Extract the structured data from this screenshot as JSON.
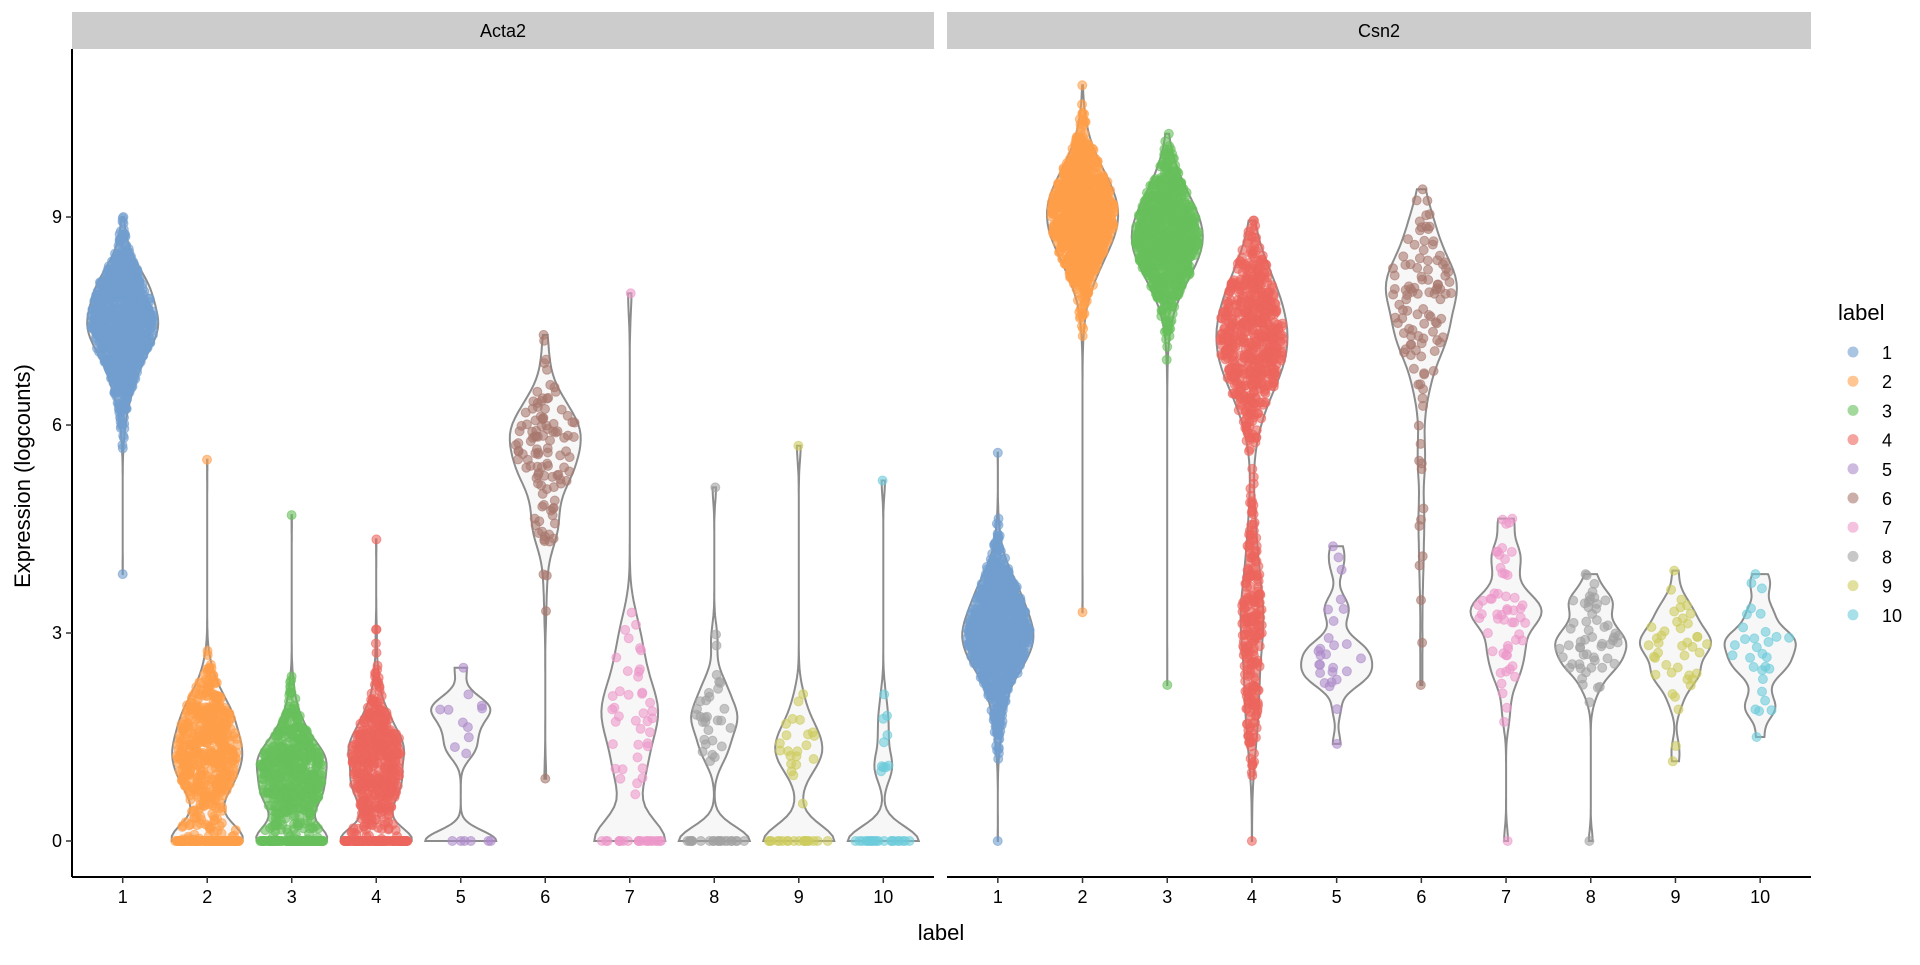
{
  "chart_data": {
    "type": "violin",
    "xlabel": "label",
    "ylabel": "Expression (logcounts)",
    "ylim": [
      -0.52,
      11.4
    ],
    "yticks": [
      0,
      3,
      6,
      9
    ],
    "categories": [
      "1",
      "2",
      "3",
      "4",
      "5",
      "6",
      "7",
      "8",
      "9",
      "10"
    ],
    "legend": {
      "title": "label",
      "position": "right",
      "entries": [
        "1",
        "2",
        "3",
        "4",
        "5",
        "6",
        "7",
        "8",
        "9",
        "10"
      ]
    },
    "colors": [
      "#729ECE",
      "#FF9E4A",
      "#67BF5C",
      "#ED665D",
      "#AD8BC9",
      "#A8786E",
      "#ED97CA",
      "#A2A2A2",
      "#CDCC5D",
      "#6DCCDA"
    ],
    "grid": false,
    "panels": [
      {
        "title": "Acta2",
        "violins": [
          {
            "label": "1",
            "n": 900,
            "min": 3.85,
            "max": 9.0,
            "modes": [
              {
                "c": 7.5,
                "sd": 0.6,
                "w": 1
              }
            ],
            "zeros": 0
          },
          {
            "label": "2",
            "n": 500,
            "min": 0,
            "max": 5.5,
            "modes": [
              {
                "c": 1.3,
                "sd": 0.6,
                "w": 1
              }
            ],
            "zeros": 150
          },
          {
            "label": "3",
            "n": 500,
            "min": 0,
            "max": 4.7,
            "modes": [
              {
                "c": 0.95,
                "sd": 0.5,
                "w": 1
              }
            ],
            "zeros": 150
          },
          {
            "label": "4",
            "n": 450,
            "min": 0,
            "max": 4.35,
            "modes": [
              {
                "c": 1.1,
                "sd": 0.6,
                "w": 1
              }
            ],
            "zeros": 150
          },
          {
            "label": "5",
            "n": 10,
            "min": 0,
            "max": 2.5,
            "modes": [
              {
                "c": 1.75,
                "sd": 0.25,
                "w": 1
              }
            ],
            "zeros": 5
          },
          {
            "label": "6",
            "n": 110,
            "min": 0.9,
            "max": 7.3,
            "modes": [
              {
                "c": 5.6,
                "sd": 0.85,
                "w": 1
              }
            ],
            "zeros": 0
          },
          {
            "label": "7",
            "n": 40,
            "min": 0,
            "max": 7.9,
            "modes": [
              {
                "c": 2.0,
                "sd": 0.6,
                "w": 1
              }
            ],
            "zeros": 20
          },
          {
            "label": "8",
            "n": 30,
            "min": 0,
            "max": 5.1,
            "modes": [
              {
                "c": 1.7,
                "sd": 0.5,
                "w": 1
              }
            ],
            "zeros": 20
          },
          {
            "label": "9",
            "n": 22,
            "min": 0,
            "max": 5.7,
            "modes": [
              {
                "c": 1.4,
                "sd": 0.3,
                "w": 1
              }
            ],
            "zeros": 18
          },
          {
            "label": "10",
            "n": 10,
            "min": 0,
            "max": 5.2,
            "modes": [
              {
                "c": 1.6,
                "sd": 0.5,
                "w": 1
              }
            ],
            "zeros": 20
          }
        ]
      },
      {
        "title": "Csn2",
        "violins": [
          {
            "label": "1",
            "n": 900,
            "min": 0,
            "max": 5.6,
            "modes": [
              {
                "c": 3.0,
                "sd": 0.55,
                "w": 1
              }
            ],
            "zeros": 0
          },
          {
            "label": "2",
            "n": 900,
            "min": 3.3,
            "max": 10.9,
            "modes": [
              {
                "c": 9.0,
                "sd": 0.55,
                "w": 1
              }
            ],
            "zeros": 0
          },
          {
            "label": "3",
            "n": 900,
            "min": 2.25,
            "max": 10.2,
            "modes": [
              {
                "c": 8.7,
                "sd": 0.55,
                "w": 1
              }
            ],
            "zeros": 0
          },
          {
            "label": "4",
            "n": 800,
            "min": 0,
            "max": 8.95,
            "modes": [
              {
                "c": 7.3,
                "sd": 0.7,
                "w": 0.7
              },
              {
                "c": 3.0,
                "sd": 1.0,
                "w": 0.3
              }
            ],
            "zeros": 0
          },
          {
            "label": "5",
            "n": 25,
            "min": 1.4,
            "max": 4.25,
            "modes": [
              {
                "c": 2.8,
                "sd": 0.6,
                "w": 1
              }
            ],
            "zeros": 0
          },
          {
            "label": "6",
            "n": 110,
            "min": 2.25,
            "max": 9.4,
            "modes": [
              {
                "c": 8.0,
                "sd": 0.8,
                "w": 0.8
              },
              {
                "c": 5.5,
                "sd": 1.2,
                "w": 0.2
              }
            ],
            "zeros": 0
          },
          {
            "label": "7",
            "n": 55,
            "min": 0,
            "max": 4.65,
            "modes": [
              {
                "c": 3.4,
                "sd": 0.7,
                "w": 1
              }
            ],
            "zeros": 0
          },
          {
            "label": "8",
            "n": 55,
            "min": 0,
            "max": 3.85,
            "modes": [
              {
                "c": 3.0,
                "sd": 0.5,
                "w": 1
              }
            ],
            "zeros": 0
          },
          {
            "label": "9",
            "n": 40,
            "min": 1.15,
            "max": 3.9,
            "modes": [
              {
                "c": 2.8,
                "sd": 0.5,
                "w": 1
              }
            ],
            "zeros": 0
          },
          {
            "label": "10",
            "n": 28,
            "min": 1.5,
            "max": 3.85,
            "modes": [
              {
                "c": 2.8,
                "sd": 0.6,
                "w": 1
              }
            ],
            "zeros": 0
          }
        ]
      }
    ]
  }
}
